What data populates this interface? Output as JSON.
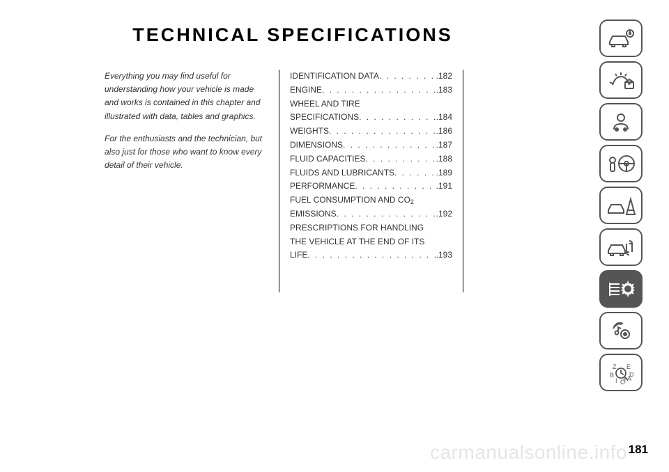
{
  "heading": "TECHNICAL SPECIFICATIONS",
  "intro": {
    "p1": "Everything you may find useful for understanding how your vehicle is made and works is contained in this chapter and illustrated with data, tables and graphics.",
    "p2": "For the enthusiasts and the technician, but also just for those who want to know every detail of their vehicle."
  },
  "toc": [
    {
      "label": "IDENTIFICATION DATA",
      "page": "182"
    },
    {
      "label": "ENGINE",
      "page": "183"
    },
    {
      "label": "WHEEL AND TIRE",
      "wrap": true
    },
    {
      "label": "SPECIFICATIONS",
      "page": "184"
    },
    {
      "label": "WEIGHTS",
      "page": "186"
    },
    {
      "label": "DIMENSIONS",
      "page": "187"
    },
    {
      "label": "FLUID CAPACITIES",
      "page": "188"
    },
    {
      "label": "FLUIDS AND LUBRICANTS",
      "page": "189"
    },
    {
      "label": "PERFORMANCE",
      "page": "191"
    },
    {
      "label_html": "FUEL CONSUMPTION AND CO",
      "sub": "2",
      "wrap": true
    },
    {
      "label": "EMISSIONS",
      "page": "192"
    },
    {
      "label": "PRESCRIPTIONS FOR HANDLING",
      "wrap": true
    },
    {
      "label": "THE VEHICLE AT THE END OF ITS",
      "wrap": true
    },
    {
      "label": "LIFE",
      "page": "193"
    }
  ],
  "tabs": {
    "active_index": 7,
    "colors": {
      "border": "#555555",
      "active_bg": "#555555",
      "icon": "#555555"
    }
  },
  "page_number": "181",
  "watermark": "carmanualsonline.info"
}
